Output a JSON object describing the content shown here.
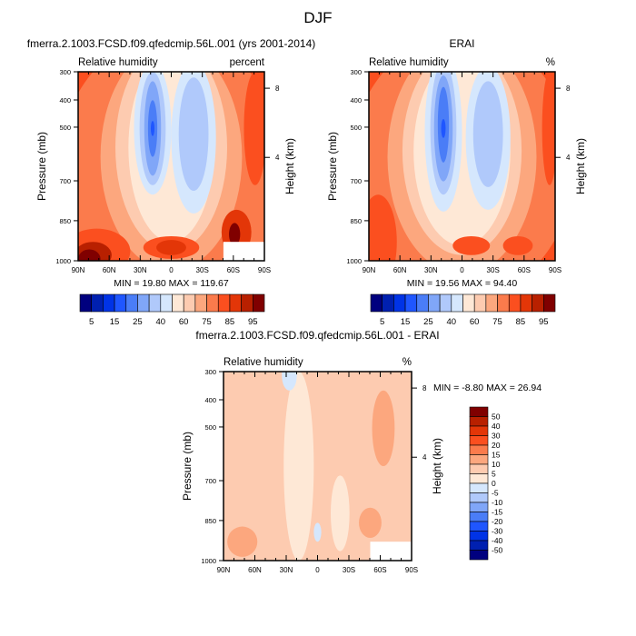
{
  "figure_title": "DJF",
  "colors": {
    "full_levels": [
      "#00007f",
      "#0020b0",
      "#0033e6",
      "#1f56ff",
      "#4a7df7",
      "#80a6f8",
      "#b0c9fb",
      "#d5e7fd",
      "#fee8d6",
      "#fdcbb0",
      "#fca77e",
      "#fb7b4c",
      "#fb4f1f",
      "#e33608",
      "#b82000",
      "#800000"
    ],
    "diff_levels": [
      "#00007f",
      "#0020b0",
      "#0033e6",
      "#1f56ff",
      "#4a7df7",
      "#80a6f8",
      "#b0c9fb",
      "#d5e7fd",
      "#fee8d6",
      "#fdcbb0",
      "#fca77e",
      "#fb7b4c",
      "#fb4f1f",
      "#e33608",
      "#b82000",
      "#800000"
    ]
  },
  "chart_data": [
    {
      "type": "heatmap",
      "subtitle": "fmerra.2.1003.FCSD.f09.qfedcmip.56L.001 (yrs 2001-2014)",
      "left_label": "Relative humidity",
      "right_label": "percent",
      "ylabel": "Pressure (mb)",
      "ylabel_right": "Height (km)",
      "x_ticks": [
        "90N",
        "60N",
        "30N",
        "0",
        "30S",
        "60S",
        "90S"
      ],
      "y_ticks": [
        "300",
        "400",
        "500",
        "700",
        "850",
        "1000"
      ],
      "y_right_ticks": [
        "8",
        "4"
      ],
      "ylim": [
        1000,
        300
      ],
      "stats": "MIN =  19.80  MAX = 119.67",
      "colorbar_labels": [
        "5",
        "15",
        "25",
        "40",
        "60",
        "75",
        "85",
        "95"
      ]
    },
    {
      "type": "heatmap",
      "subtitle": "ERAI",
      "left_label": "Relative humidity",
      "right_label": "%",
      "ylabel": "Pressure (mb)",
      "ylabel_right": "Height (km)",
      "x_ticks": [
        "90N",
        "60N",
        "30N",
        "0",
        "30S",
        "60S",
        "90S"
      ],
      "y_ticks": [
        "300",
        "400",
        "500",
        "700",
        "850",
        "1000"
      ],
      "y_right_ticks": [
        "8",
        "4"
      ],
      "ylim": [
        1000,
        300
      ],
      "stats": "MIN =  19.56  MAX =  94.40",
      "colorbar_labels": [
        "5",
        "15",
        "25",
        "40",
        "60",
        "75",
        "85",
        "95"
      ]
    },
    {
      "type": "heatmap",
      "subtitle": "fmerra.2.1003.FCSD.f09.qfedcmip.56L.001 - ERAI",
      "left_label": "Relative humidity",
      "right_label": "%",
      "ylabel": "Pressure (mb)",
      "ylabel_right": "Height (km)",
      "x_ticks": [
        "90N",
        "60N",
        "30N",
        "0",
        "30S",
        "60S",
        "90S"
      ],
      "y_ticks": [
        "300",
        "400",
        "500",
        "700",
        "850",
        "1000"
      ],
      "y_right_ticks": [
        "8",
        "4"
      ],
      "ylim": [
        1000,
        300
      ],
      "stats": "MIN =  -8.80  MAX =  26.94",
      "colorbar_labels": [
        "50",
        "40",
        "30",
        "20",
        "15",
        "10",
        "5",
        "0",
        "-5",
        "-10",
        "-15",
        "-20",
        "-30",
        "-40",
        "-50"
      ]
    }
  ]
}
